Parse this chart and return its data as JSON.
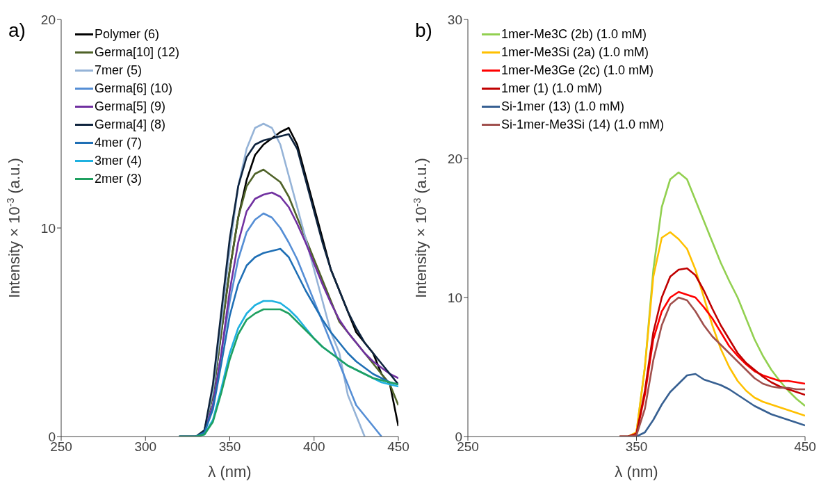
{
  "chart_data": [
    {
      "type": "line",
      "xlabel": "λ (nm)",
      "ylabel": "Intensity × 10$^{-3}$ (a.u.)",
      "annotations": [
        "a)"
      ],
      "xlim": [
        250,
        450
      ],
      "xticks": [
        250,
        300,
        350,
        400,
        450
      ],
      "ylim": [
        0,
        20
      ],
      "yticks": [
        0,
        10,
        20
      ],
      "grid": false,
      "legend": "top left",
      "marker": "none",
      "line_style": "solid",
      "x": [
        320,
        325,
        330,
        335,
        340,
        345,
        350,
        355,
        360,
        365,
        370,
        375,
        380,
        385,
        390,
        395,
        400,
        405,
        410,
        415,
        420,
        425,
        430,
        435,
        440,
        445,
        450
      ],
      "series": [
        {
          "name": "Polymer (6)",
          "color": "#000000",
          "values": [
            0,
            0,
            0,
            0.3,
            2,
            5,
            8,
            10.5,
            12.3,
            13.5,
            14,
            14.3,
            14.6,
            14.8,
            14,
            12.5,
            11,
            9.5,
            8,
            7,
            6,
            5,
            4.5,
            4,
            3,
            2.5,
            0.5
          ]
        },
        {
          "name": "Germa[10] (12)",
          "color": "#4f6228",
          "values": [
            0,
            0,
            0,
            0.3,
            2,
            5,
            8,
            10.5,
            12,
            12.6,
            12.8,
            12.5,
            12.2,
            11.5,
            10.5,
            9.5,
            8.5,
            7.5,
            6.5,
            5.5,
            5,
            4.5,
            4,
            3.5,
            3,
            2.5,
            1.5
          ]
        },
        {
          "name": "7mer (5)",
          "color": "#95b3d7",
          "values": [
            0,
            0,
            0,
            0.3,
            2.2,
            5.5,
            9,
            12,
            13.8,
            14.8,
            15,
            14.8,
            14,
            12.5,
            11,
            9.5,
            8,
            6.5,
            5,
            4,
            2,
            1,
            0,
            null,
            null,
            null,
            null
          ]
        },
        {
          "name": "Germa[6] (10)",
          "color": "#558ed5",
          "values": [
            0,
            0,
            0,
            0.2,
            1.5,
            4,
            6.5,
            8.5,
            9.8,
            10.4,
            10.7,
            10.5,
            10,
            9.3,
            8.5,
            7.5,
            6.5,
            5.5,
            4.5,
            3.5,
            2.5,
            1.5,
            1,
            0.5,
            0,
            null,
            null
          ]
        },
        {
          "name": "Germa[5] (9)",
          "color": "#7030a0",
          "values": [
            null,
            null,
            0,
            0.2,
            1.5,
            4,
            7,
            9.3,
            10.8,
            11.4,
            11.6,
            11.7,
            11.5,
            11,
            10.2,
            9.3,
            8.3,
            7.3,
            6.4,
            5.6,
            5,
            4.5,
            4,
            3.6,
            3.3,
            3,
            2.8
          ]
        },
        {
          "name": "Germa[4] (8)",
          "color": "#0f243e",
          "values": [
            0,
            0,
            0,
            0.3,
            2.5,
            6,
            9.5,
            12,
            13.4,
            14,
            14.2,
            14.3,
            14.4,
            14.5,
            13.8,
            12.3,
            10.8,
            9.3,
            8,
            7,
            6,
            5.2,
            4.5,
            4,
            3.5,
            3,
            2.5
          ]
        },
        {
          "name": "4mer (7)",
          "color": "#1f6fb5",
          "values": [
            0,
            0,
            0,
            0.2,
            1.3,
            3.5,
            5.8,
            7.3,
            8.2,
            8.6,
            8.8,
            8.9,
            9,
            8.6,
            7.8,
            7,
            6.3,
            5.6,
            5,
            4.5,
            4,
            3.6,
            3.3,
            3,
            2.8,
            2.6,
            2.5
          ]
        },
        {
          "name": "3mer (4)",
          "color": "#1fb1e0",
          "values": [
            null,
            null,
            0,
            0.1,
            0.8,
            2.3,
            4,
            5.2,
            5.9,
            6.3,
            6.5,
            6.5,
            6.4,
            6.1,
            5.7,
            5.2,
            4.7,
            4.3,
            4,
            3.7,
            3.4,
            3.2,
            3,
            2.8,
            2.6,
            2.5,
            2.4
          ]
        },
        {
          "name": "2mer (3)",
          "color": "#1fa060",
          "values": [
            0,
            0,
            0,
            0.1,
            0.7,
            2.1,
            3.7,
            4.9,
            5.6,
            5.9,
            6.1,
            6.1,
            6.1,
            5.9,
            5.5,
            5.1,
            4.7,
            4.3,
            4,
            3.7,
            3.4,
            3.2,
            3,
            2.8,
            2.7,
            2.6,
            2.5
          ]
        }
      ]
    },
    {
      "type": "line",
      "xlabel": "λ (nm)",
      "ylabel": "Intensity × 10$^{-3}$ (a.u.)",
      "annotations": [
        "b)"
      ],
      "xlim": [
        250,
        450
      ],
      "xticks": [
        250,
        350,
        450
      ],
      "ylim": [
        0,
        30
      ],
      "yticks": [
        0,
        10,
        20,
        30
      ],
      "grid": false,
      "legend": "top left",
      "marker": "none",
      "line_style": "solid",
      "x": [
        340,
        345,
        350,
        355,
        360,
        365,
        370,
        375,
        380,
        385,
        390,
        395,
        400,
        405,
        410,
        415,
        420,
        425,
        430,
        435,
        440,
        445,
        450
      ],
      "series": [
        {
          "name": "1mer-Me3C (2b) (1.0 mM)",
          "color": "#92d050",
          "values": [
            null,
            null,
            0.3,
            5,
            12,
            16.5,
            18.5,
            19,
            18.5,
            17,
            15.5,
            14,
            12.5,
            11.2,
            10,
            8.5,
            7,
            5.8,
            4.8,
            4,
            3.3,
            2.7,
            2.2
          ]
        },
        {
          "name": "1mer-Me3Si (2a) (1.0 mM)",
          "color": "#ffc000",
          "values": [
            0,
            0,
            0.3,
            5,
            11.5,
            14.3,
            14.7,
            14.2,
            13.5,
            12,
            10,
            8,
            6.3,
            5,
            4,
            3.3,
            2.8,
            2.5,
            2.3,
            2.1,
            1.9,
            1.7,
            1.5
          ]
        },
        {
          "name": "1mer-Me3Ge (2c) (1.0 mM)",
          "color": "#ff0000",
          "values": [
            0,
            0,
            0.2,
            3,
            7,
            9,
            10,
            10.4,
            10.2,
            10,
            9.3,
            8.5,
            7.5,
            6.5,
            5.8,
            5.2,
            4.7,
            4.4,
            4.2,
            4,
            4,
            3.9,
            3.8
          ]
        },
        {
          "name": "1mer (1) (1.0 mM)",
          "color": "#c00000",
          "values": [
            0,
            0,
            0.2,
            3.3,
            7.5,
            10,
            11.5,
            12,
            12.1,
            11.6,
            10.5,
            9.2,
            8,
            7,
            6,
            5.3,
            4.8,
            4.3,
            3.9,
            3.6,
            3.4,
            3.2,
            3
          ]
        },
        {
          "name": "Si-1mer (13) (1.0 mM)",
          "color": "#376092",
          "values": [
            0,
            0,
            0,
            0.3,
            1.2,
            2.3,
            3.2,
            3.8,
            4.4,
            4.5,
            4.1,
            3.9,
            3.7,
            3.4,
            3,
            2.6,
            2.2,
            1.9,
            1.6,
            1.4,
            1.2,
            1,
            0.8
          ]
        },
        {
          "name": "Si-1mer-Me3Si (14) (1.0 mM)",
          "color": "#a0504d",
          "values": [
            0,
            0,
            0.1,
            2,
            5.5,
            8,
            9.5,
            10,
            9.8,
            9,
            8,
            7.2,
            6.6,
            6,
            5.4,
            4.8,
            4.2,
            3.8,
            3.6,
            3.5,
            3.5,
            3.4,
            3.4
          ]
        }
      ]
    }
  ]
}
